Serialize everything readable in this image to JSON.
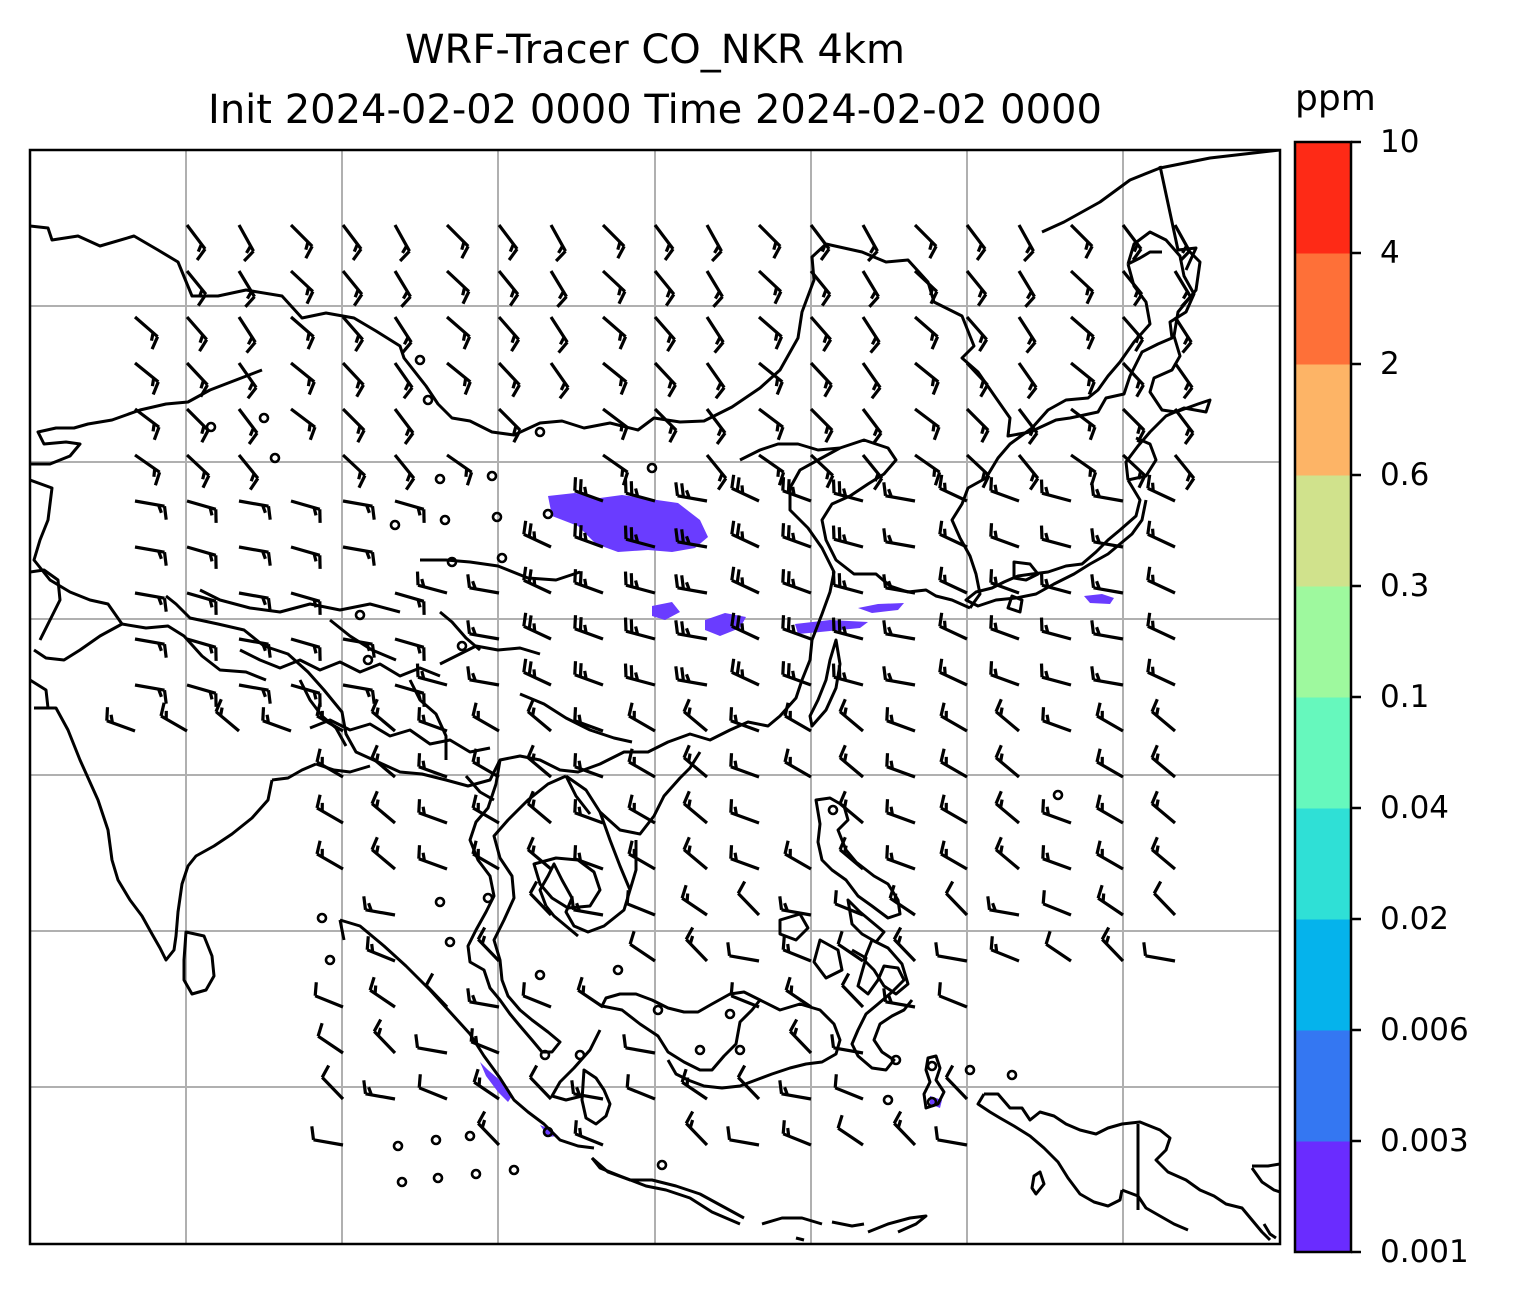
{
  "title": {
    "line1": "WRF-Tracer CO_NKR 4km",
    "line2": "Init 2024-02-02 0000 Time 2024-02-02 0000"
  },
  "colorbar": {
    "unit": "ppm",
    "ticks": [
      "0.001",
      "0.003",
      "0.006",
      "0.02",
      "0.04",
      "0.1",
      "0.3",
      "0.6",
      "2",
      "4",
      "10"
    ],
    "colors": [
      "#6a2cff",
      "#3477f2",
      "#05b3ec",
      "#2fe0d6",
      "#66f8bd",
      "#9ef99e",
      "#d0e28c",
      "#fdb466",
      "#fe7038",
      "#fe2a16"
    ]
  },
  "map": {
    "gridlines": true,
    "plume_color": "#6a3cff"
  }
}
